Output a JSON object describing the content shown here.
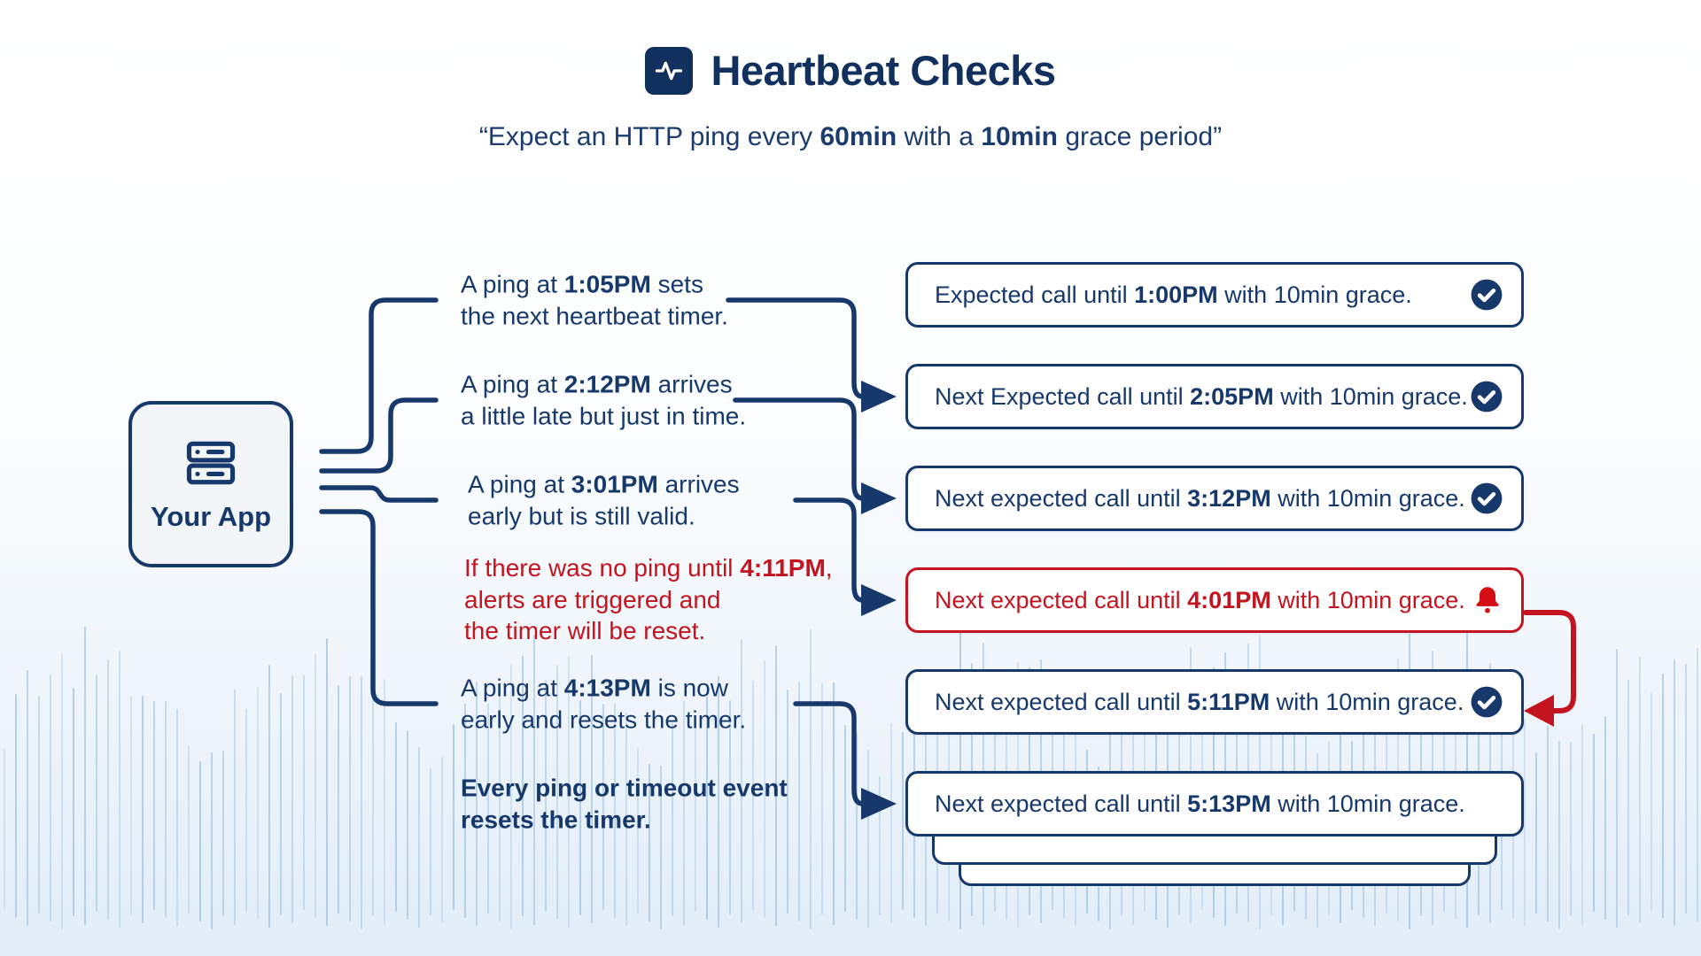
{
  "colors": {
    "navy": "#16386b",
    "navy_deep": "#12305e",
    "red": "#c3141f",
    "bell_red": "#d40e14",
    "app_bg": "#f3f6f9",
    "box_bg": "#ffffff",
    "wave": "#9cc4e2",
    "bg_top": "#ffffff",
    "bg_bottom": "#e2edf8"
  },
  "header": {
    "icon": "activity-pulse-icon",
    "title": "Heartbeat Checks",
    "subtitle_parts": [
      {
        "t": "“Expect an HTTP ping every "
      },
      {
        "t": "60min",
        "b": 1
      },
      {
        "t": " with a "
      },
      {
        "t": "10min",
        "b": 1
      },
      {
        "t": " grace period”"
      }
    ]
  },
  "app_box": {
    "icon": "server-icon",
    "label": "Your App"
  },
  "notes": [
    {
      "parts": [
        {
          "t": "A ping at "
        },
        {
          "t": "1:05PM",
          "b": 1
        },
        {
          "t": " sets"
        },
        {
          "nl": 1
        },
        {
          "t": "the next heartbeat timer."
        }
      ]
    },
    {
      "parts": [
        {
          "t": "A ping at "
        },
        {
          "t": "2:12PM",
          "b": 1
        },
        {
          "t": " arrives"
        },
        {
          "nl": 1
        },
        {
          "t": "a little late but just in time."
        }
      ]
    },
    {
      "parts": [
        {
          "t": "A ping at "
        },
        {
          "t": "3:01PM",
          "b": 1
        },
        {
          "t": " arrives"
        },
        {
          "nl": 1
        },
        {
          "t": "early but is still valid."
        }
      ]
    },
    {
      "theme": "red",
      "parts": [
        {
          "t": "If there was no ping until "
        },
        {
          "t": "4:11PM",
          "b": 1
        },
        {
          "t": ","
        },
        {
          "nl": 1
        },
        {
          "t": "alerts are triggered and"
        },
        {
          "nl": 1
        },
        {
          "t": "the timer will be reset."
        }
      ]
    },
    {
      "parts": [
        {
          "t": "A ping at "
        },
        {
          "t": "4:13PM",
          "b": 1
        },
        {
          "t": " is now"
        },
        {
          "nl": 1
        },
        {
          "t": "early and resets the timer."
        }
      ]
    },
    {
      "theme": "bold",
      "parts": [
        {
          "t": "Every ping or timeout event",
          "b": 1
        },
        {
          "nl": 1
        },
        {
          "t": "resets the timer.",
          "b": 1
        }
      ]
    }
  ],
  "boxes": [
    {
      "icon": "check-circle-icon",
      "parts": [
        {
          "t": "Expected call until "
        },
        {
          "t": "1:00PM",
          "b": 1
        },
        {
          "t": " with 10min grace."
        }
      ]
    },
    {
      "icon": "check-circle-icon",
      "parts": [
        {
          "t": "Next Expected call until "
        },
        {
          "t": "2:05PM",
          "b": 1
        },
        {
          "t": " with 10min grace."
        }
      ]
    },
    {
      "icon": "check-circle-icon",
      "parts": [
        {
          "t": "Next expected call until "
        },
        {
          "t": "3:12PM",
          "b": 1
        },
        {
          "t": " with 10min grace."
        }
      ]
    },
    {
      "icon": "bell-icon",
      "theme": "alert",
      "parts": [
        {
          "t": "Next expected call until "
        },
        {
          "t": "4:01PM",
          "b": 1
        },
        {
          "t": " with 10min grace."
        }
      ]
    },
    {
      "icon": "check-circle-icon",
      "parts": [
        {
          "t": "Next expected call until "
        },
        {
          "t": "5:11PM",
          "b": 1
        },
        {
          "t": " with 10min grace."
        }
      ]
    },
    {
      "icon": "",
      "parts": [
        {
          "t": "Next expected call until "
        },
        {
          "t": "5:13PM",
          "b": 1
        },
        {
          "t": " with 10min grace."
        }
      ]
    }
  ]
}
